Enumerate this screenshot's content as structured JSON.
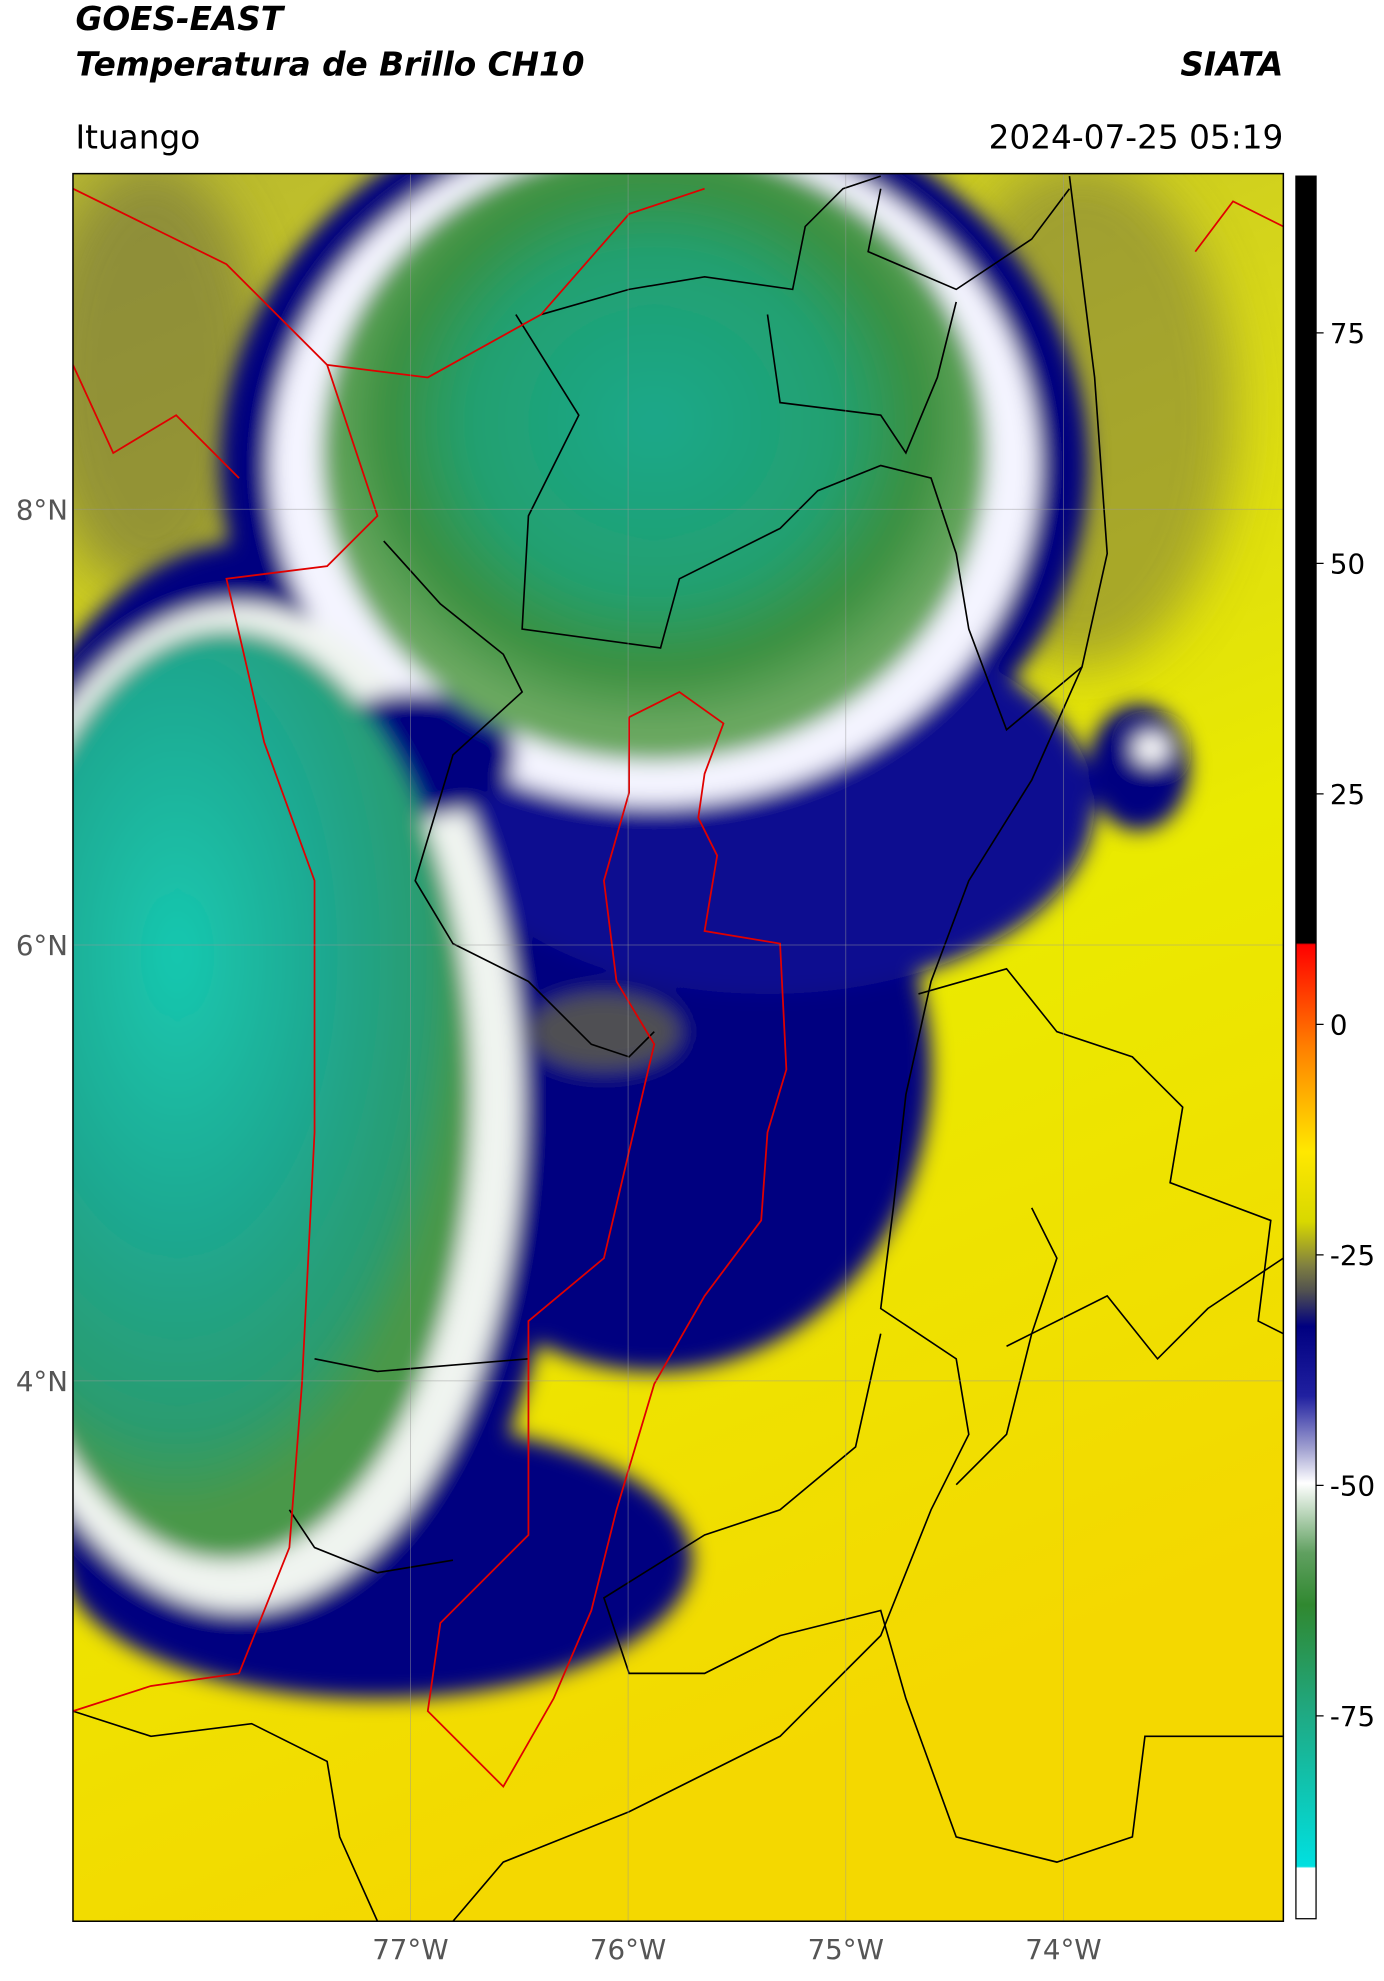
{
  "header": {
    "title": "GOES-EAST",
    "subtitle": "Temperatura de Brillo CH10",
    "source": "SIATA",
    "location": "Ituango",
    "timestamp": "2024-07-25 05:19"
  },
  "map": {
    "lat_range": [
      1.52,
      9.54
    ],
    "lon_range": [
      -78.55,
      -72.99
    ],
    "lat_ticks": [
      {
        "value": 8,
        "label": "8°N"
      },
      {
        "value": 6,
        "label": "6°N"
      },
      {
        "value": 4,
        "label": "4°N"
      }
    ],
    "lon_ticks": [
      {
        "value": -77,
        "label": "77°W"
      },
      {
        "value": -76,
        "label": "76°W"
      },
      {
        "value": -75,
        "label": "75°W"
      },
      {
        "value": -74,
        "label": "74°W"
      }
    ]
  },
  "colorbar": {
    "range": [
      -97,
      92
    ],
    "ticks": [
      75,
      50,
      25,
      0,
      -25,
      -50,
      -75
    ]
  }
}
